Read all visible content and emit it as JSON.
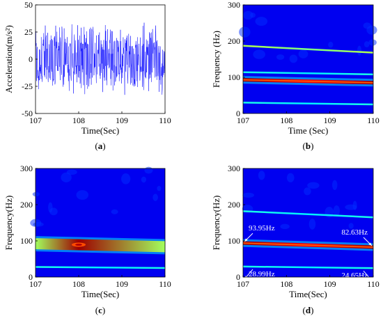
{
  "chart_data": [
    {
      "id": "a",
      "type": "line",
      "panel_label": "(a)",
      "panel_letter": "a",
      "xlabel": "Time(Sec)",
      "ylabel": "Acceleration(m/s²)",
      "xlim": [
        107,
        110
      ],
      "ylim": [
        -50,
        50
      ],
      "xticks": [
        107,
        108,
        109,
        110
      ],
      "yticks": [
        -50,
        -25,
        0,
        25,
        50
      ],
      "series": [
        {
          "color": "#0000ff",
          "amplitude_envelope": [
            -40,
            35
          ]
        }
      ]
    },
    {
      "id": "b",
      "type": "heatmap",
      "panel_label": "(b)",
      "panel_letter": "b",
      "xlabel": "Time (Sec)",
      "ylabel": "Frequency (Hz)",
      "xlim": [
        107,
        110
      ],
      "ylim": [
        0,
        300
      ],
      "xticks": [
        107,
        108,
        109,
        110
      ],
      "yticks": [
        0,
        100,
        200,
        300
      ],
      "ridges": [
        {
          "start_hz": 93,
          "end_hz": 85,
          "intensity": "high"
        },
        {
          "start_hz": 187,
          "end_hz": 168,
          "intensity": "medium"
        },
        {
          "start_hz": 30,
          "end_hz": 25,
          "intensity": "low"
        },
        {
          "start_hz": 114,
          "end_hz": 108,
          "intensity": "low"
        }
      ]
    },
    {
      "id": "c",
      "type": "heatmap",
      "panel_label": "(c)",
      "panel_letter": "c",
      "xlabel": "Time(Sec)",
      "ylabel": "Frequency(Hz)",
      "xlim": [
        107,
        110
      ],
      "ylim": [
        0,
        300
      ],
      "xticks": [
        107,
        108,
        109,
        110
      ],
      "yticks": [
        0,
        100,
        200,
        300
      ],
      "ridges": [
        {
          "start_hz": 92,
          "end_hz": 84,
          "intensity": "high",
          "spread": "wide",
          "peak_time": 108
        },
        {
          "start_hz": 28,
          "end_hz": 25,
          "intensity": "low"
        }
      ]
    },
    {
      "id": "d",
      "type": "heatmap",
      "panel_label": "(d)",
      "panel_letter": "d",
      "xlabel": "Time(Sec)",
      "ylabel": "Frequency(Hz)",
      "xlim": [
        107,
        110
      ],
      "ylim": [
        0,
        300
      ],
      "xticks": [
        107,
        108,
        109,
        110
      ],
      "yticks": [
        0,
        100,
        200,
        300
      ],
      "ridges": [
        {
          "start_hz": 93.95,
          "end_hz": 82.63,
          "intensity": "high"
        },
        {
          "start_hz": 182,
          "end_hz": 165,
          "intensity": "low"
        },
        {
          "start_hz": 28.99,
          "end_hz": 24.65,
          "intensity": "low"
        }
      ],
      "annotations": [
        {
          "text": "93.95Hz",
          "x": 107,
          "y": 93.95
        },
        {
          "text": "82.63Hz",
          "x": 110,
          "y": 82.63
        },
        {
          "text": "28.99Hz",
          "x": 107,
          "y": 28.99
        },
        {
          "text": "24.65Hz",
          "x": 110,
          "y": 24.65
        }
      ]
    }
  ]
}
